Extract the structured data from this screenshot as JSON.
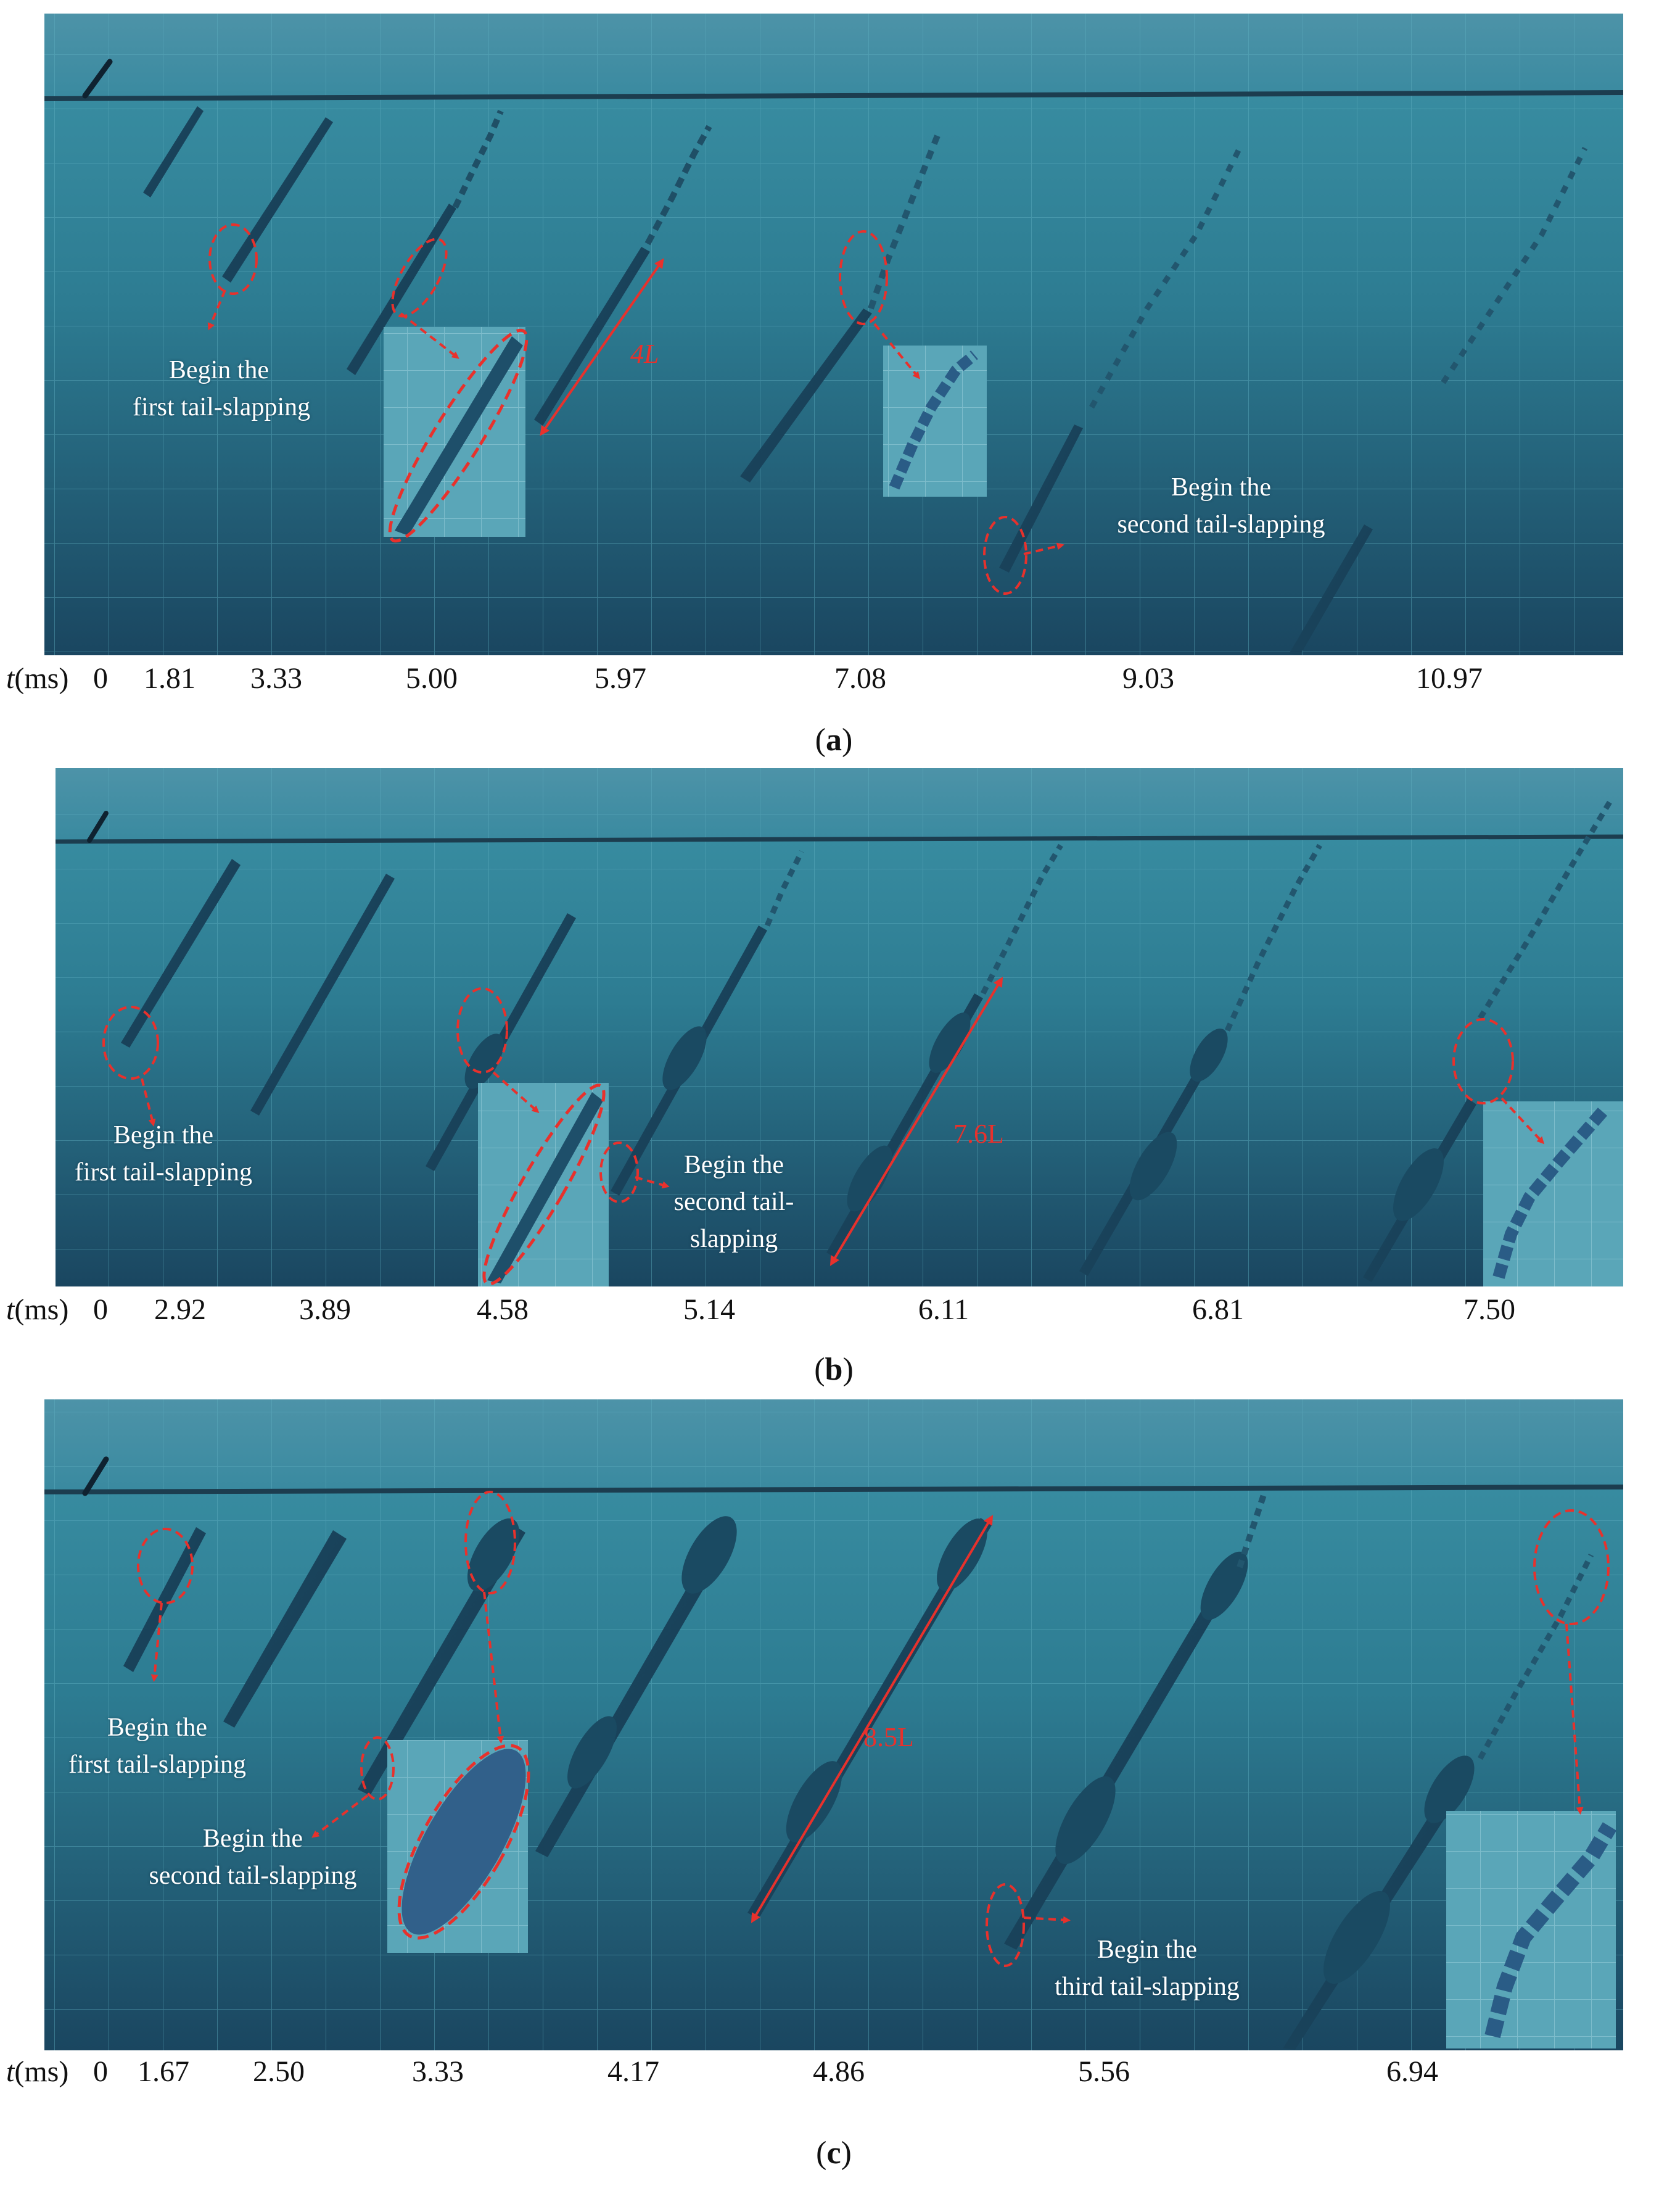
{
  "time_axis_label": "t(ms)",
  "panels": [
    {
      "id": "a",
      "caption_open": "(",
      "caption_letter": "a",
      "caption_close": ")",
      "times": [
        "0",
        "1.81",
        "3.33",
        "5.00",
        "5.97",
        "7.08",
        "9.03",
        "10.97"
      ],
      "annotations": [
        {
          "lines": [
            "Begin the",
            "first tail-slapping"
          ]
        },
        {
          "lines": [
            "Begin the",
            "second tail-slapping"
          ]
        }
      ],
      "dimension": "4L"
    },
    {
      "id": "b",
      "caption_open": "(",
      "caption_letter": "b",
      "caption_close": ")",
      "times": [
        "0",
        "2.92",
        "3.89",
        "4.58",
        "5.14",
        "6.11",
        "6.81",
        "7.50"
      ],
      "annotations": [
        {
          "lines": [
            "Begin the",
            "first tail-slapping"
          ]
        },
        {
          "lines": [
            "Begin the",
            "second tail-",
            "slapping"
          ]
        }
      ],
      "dimension": "7.6L"
    },
    {
      "id": "c",
      "caption_open": "(",
      "caption_letter": "c",
      "caption_close": ")",
      "times": [
        "0",
        "1.67",
        "2.50",
        "3.33",
        "4.17",
        "4.86",
        "5.56",
        "6.94"
      ],
      "annotations": [
        {
          "lines": [
            "Begin the",
            "first tail-slapping"
          ]
        },
        {
          "lines": [
            "Begin the",
            "second tail-slapping"
          ]
        },
        {
          "lines": [
            "Begin the",
            "third tail-slapping"
          ]
        }
      ],
      "dimension": "8.5L"
    }
  ],
  "colors": {
    "water_top": "#2f7f95",
    "water_bottom": "#1d4a63",
    "annotation": "#e8312c",
    "label_text": "#ffffff"
  }
}
